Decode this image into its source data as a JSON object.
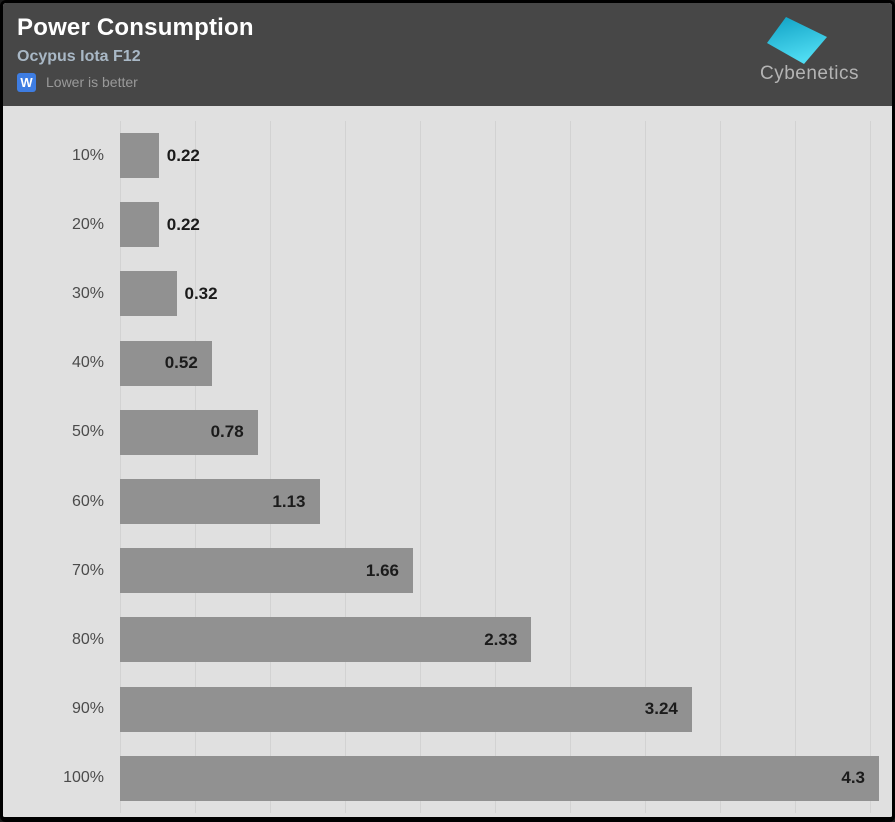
{
  "header": {
    "title": "Power Consumption",
    "subtitle": "Ocypus Iota F12",
    "unit_badge": "W",
    "note": "Lower is better",
    "logo_text": "Cybenetics"
  },
  "colors": {
    "header_bg": "#474747",
    "title_text": "#ffffff",
    "subtitle_text": "#a9b8c6",
    "badge_bg": "#3e7de2",
    "note_text": "#9a9a9a",
    "chart_bg": "#e0e0e0",
    "gridline": "#d2d2d2",
    "bar": "#919191",
    "value_label": "#1b1b1b",
    "category_label": "#4b4b4b",
    "logo_text": "#b4b4b4",
    "logo_shape_dark": "#0fa0c4",
    "logo_shape_light": "#4fdcf2"
  },
  "chart_data": {
    "type": "bar",
    "orientation": "horizontal",
    "title": "Power Consumption",
    "subtitle": "Ocypus Iota F12",
    "unit": "W",
    "note": "Lower is better",
    "categories": [
      "10%",
      "20%",
      "30%",
      "40%",
      "50%",
      "60%",
      "70%",
      "80%",
      "90%",
      "100%"
    ],
    "values": [
      0.22,
      0.22,
      0.32,
      0.52,
      0.78,
      1.13,
      1.66,
      2.33,
      3.24,
      4.3
    ],
    "value_labels": [
      "0.22",
      "0.22",
      "0.32",
      "0.52",
      "0.78",
      "1.13",
      "1.66",
      "2.33",
      "3.24",
      "4.3"
    ],
    "xlim": [
      0,
      4.3
    ],
    "grid": "vertical-lines-only",
    "legend": "none"
  }
}
